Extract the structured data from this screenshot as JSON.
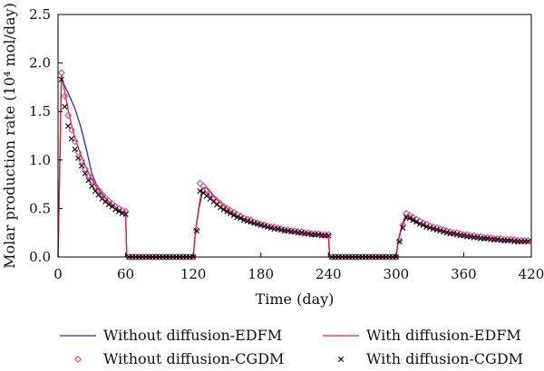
{
  "chart_data": {
    "type": "line",
    "xlabel": "Time (day)",
    "ylabel": "Molar production rate (10⁴ mol/day)",
    "xlim": [
      0,
      420
    ],
    "ylim": [
      0,
      2.5
    ],
    "x_ticks": [
      0,
      60,
      120,
      180,
      240,
      300,
      360,
      420
    ],
    "y_ticks": [
      0.0,
      0.5,
      1.0,
      1.5,
      2.0,
      2.5
    ],
    "x_tick_labels": [
      "0",
      "60",
      "120",
      "180",
      "240",
      "300",
      "360",
      "420"
    ],
    "y_tick_labels": [
      "0.0",
      "0.5",
      "1.0",
      "1.5",
      "2.0",
      "2.5"
    ],
    "grid": false,
    "legend_position": "bottom",
    "series": [
      {
        "name": "Without diffusion-EDFM",
        "style": "line",
        "color": "#1f2fd6",
        "x": [
          0,
          3,
          6,
          9,
          12,
          15,
          20,
          25,
          30,
          35,
          40,
          45,
          50,
          55,
          59,
          60,
          61,
          120,
          122,
          125,
          128,
          131,
          135,
          140,
          150,
          160,
          170,
          180,
          190,
          200,
          210,
          220,
          230,
          239,
          240,
          241,
          300,
          302,
          305,
          308,
          311,
          315,
          320,
          330,
          340,
          350,
          360,
          370,
          380,
          390,
          400,
          410,
          418,
          420
        ],
        "y": [
          0,
          1.84,
          1.76,
          1.69,
          1.61,
          1.53,
          1.35,
          1.12,
          0.86,
          0.72,
          0.64,
          0.57,
          0.52,
          0.48,
          0.46,
          0.45,
          0,
          0,
          0.26,
          0.5,
          0.66,
          0.67,
          0.62,
          0.55,
          0.46,
          0.4,
          0.35,
          0.32,
          0.29,
          0.27,
          0.25,
          0.24,
          0.23,
          0.22,
          0.22,
          0,
          0,
          0.17,
          0.3,
          0.39,
          0.4,
          0.37,
          0.34,
          0.3,
          0.27,
          0.24,
          0.22,
          0.21,
          0.19,
          0.18,
          0.17,
          0.16,
          0.16,
          0.16
        ]
      },
      {
        "name": "With diffusion-EDFM",
        "style": "line",
        "color": "#e8202a",
        "x": [
          0,
          3,
          6,
          9,
          12,
          15,
          20,
          25,
          30,
          35,
          40,
          45,
          50,
          55,
          59,
          60,
          61,
          120,
          122,
          125,
          128,
          131,
          135,
          140,
          150,
          160,
          170,
          180,
          190,
          200,
          210,
          220,
          230,
          239,
          240,
          241,
          300,
          302,
          305,
          308,
          311,
          315,
          320,
          330,
          340,
          350,
          360,
          370,
          380,
          390,
          400,
          410,
          418,
          420
        ],
        "y": [
          0,
          1.88,
          1.7,
          1.52,
          1.36,
          1.23,
          1.06,
          0.92,
          0.8,
          0.71,
          0.63,
          0.57,
          0.52,
          0.48,
          0.46,
          0.46,
          0,
          0,
          0.27,
          0.52,
          0.71,
          0.72,
          0.67,
          0.6,
          0.5,
          0.42,
          0.37,
          0.33,
          0.3,
          0.28,
          0.26,
          0.25,
          0.24,
          0.23,
          0.23,
          0,
          0,
          0.18,
          0.32,
          0.42,
          0.43,
          0.4,
          0.36,
          0.31,
          0.28,
          0.25,
          0.23,
          0.21,
          0.2,
          0.19,
          0.18,
          0.17,
          0.17,
          0.17
        ]
      },
      {
        "name": "Without diffusion-CGDM",
        "style": "diamond",
        "color": "#e0459a",
        "x": [
          3,
          6,
          9,
          12,
          15,
          18,
          21,
          24,
          27,
          30,
          33,
          36,
          39,
          42,
          45,
          48,
          51,
          54,
          57,
          60,
          63,
          66,
          69,
          72,
          75,
          78,
          81,
          84,
          87,
          90,
          93,
          96,
          99,
          102,
          105,
          108,
          111,
          114,
          117,
          120,
          123,
          126,
          129,
          132,
          135,
          138,
          141,
          144,
          147,
          150,
          153,
          156,
          159,
          162,
          165,
          168,
          171,
          174,
          177,
          180,
          183,
          186,
          189,
          192,
          195,
          198,
          201,
          204,
          207,
          210,
          213,
          216,
          219,
          222,
          225,
          228,
          231,
          234,
          237,
          240,
          243,
          246,
          249,
          252,
          255,
          258,
          261,
          264,
          267,
          270,
          273,
          276,
          279,
          282,
          285,
          288,
          291,
          294,
          297,
          300,
          303,
          306,
          309,
          312,
          315,
          318,
          321,
          324,
          327,
          330,
          333,
          336,
          339,
          342,
          345,
          348,
          351,
          354,
          357,
          360,
          363,
          366,
          369,
          372,
          375,
          378,
          381,
          384,
          387,
          390,
          393,
          396,
          399,
          402,
          405,
          408,
          411,
          414,
          417
        ],
        "y": [
          1.9,
          1.66,
          1.46,
          1.31,
          1.19,
          1.08,
          0.99,
          0.91,
          0.84,
          0.78,
          0.73,
          0.69,
          0.65,
          0.61,
          0.58,
          0.55,
          0.52,
          0.5,
          0.48,
          0.47,
          0,
          0,
          0,
          0,
          0,
          0,
          0,
          0,
          0,
          0,
          0,
          0,
          0,
          0,
          0,
          0,
          0,
          0,
          0,
          0,
          0.28,
          0.76,
          0.73,
          0.69,
          0.65,
          0.61,
          0.58,
          0.55,
          0.52,
          0.5,
          0.48,
          0.46,
          0.44,
          0.42,
          0.4,
          0.39,
          0.38,
          0.36,
          0.35,
          0.34,
          0.33,
          0.32,
          0.31,
          0.31,
          0.3,
          0.29,
          0.28,
          0.28,
          0.27,
          0.27,
          0.26,
          0.26,
          0.25,
          0.25,
          0.24,
          0.24,
          0.24,
          0.23,
          0.23,
          0.23,
          0,
          0,
          0,
          0,
          0,
          0,
          0,
          0,
          0,
          0,
          0,
          0,
          0,
          0,
          0,
          0,
          0,
          0,
          0,
          0,
          0.17,
          0.33,
          0.45,
          0.43,
          0.41,
          0.39,
          0.37,
          0.35,
          0.34,
          0.32,
          0.31,
          0.3,
          0.29,
          0.28,
          0.27,
          0.26,
          0.25,
          0.25,
          0.24,
          0.23,
          0.23,
          0.22,
          0.22,
          0.21,
          0.21,
          0.2,
          0.2,
          0.2,
          0.19,
          0.19,
          0.19,
          0.18,
          0.18,
          0.18,
          0.18,
          0.17,
          0.17,
          0.17,
          0.17
        ]
      },
      {
        "name": "With diffusion-CGDM",
        "style": "cross",
        "color": "#111111",
        "x": [
          3,
          6,
          9,
          12,
          15,
          18,
          21,
          24,
          27,
          30,
          33,
          36,
          39,
          42,
          45,
          48,
          51,
          54,
          57,
          60,
          63,
          66,
          69,
          72,
          75,
          78,
          81,
          84,
          87,
          90,
          93,
          96,
          99,
          102,
          105,
          108,
          111,
          114,
          117,
          120,
          123,
          126,
          129,
          132,
          135,
          138,
          141,
          144,
          147,
          150,
          153,
          156,
          159,
          162,
          165,
          168,
          171,
          174,
          177,
          180,
          183,
          186,
          189,
          192,
          195,
          198,
          201,
          204,
          207,
          210,
          213,
          216,
          219,
          222,
          225,
          228,
          231,
          234,
          237,
          240,
          243,
          246,
          249,
          252,
          255,
          258,
          261,
          264,
          267,
          270,
          273,
          276,
          279,
          282,
          285,
          288,
          291,
          294,
          297,
          300,
          303,
          306,
          309,
          312,
          315,
          318,
          321,
          324,
          327,
          330,
          333,
          336,
          339,
          342,
          345,
          348,
          351,
          354,
          357,
          360,
          363,
          366,
          369,
          372,
          375,
          378,
          381,
          384,
          387,
          390,
          393,
          396,
          399,
          402,
          405,
          408,
          411,
          414,
          417
        ],
        "y": [
          1.83,
          1.55,
          1.35,
          1.22,
          1.11,
          1.02,
          0.94,
          0.86,
          0.79,
          0.73,
          0.68,
          0.64,
          0.6,
          0.57,
          0.54,
          0.52,
          0.49,
          0.47,
          0.45,
          0.44,
          0,
          0,
          0,
          0,
          0,
          0,
          0,
          0,
          0,
          0,
          0,
          0,
          0,
          0,
          0,
          0,
          0,
          0,
          0,
          0,
          0.27,
          0.68,
          0.66,
          0.63,
          0.6,
          0.57,
          0.54,
          0.51,
          0.49,
          0.47,
          0.45,
          0.43,
          0.41,
          0.4,
          0.38,
          0.37,
          0.36,
          0.35,
          0.34,
          0.33,
          0.32,
          0.31,
          0.3,
          0.29,
          0.29,
          0.28,
          0.27,
          0.27,
          0.26,
          0.26,
          0.25,
          0.25,
          0.24,
          0.24,
          0.23,
          0.23,
          0.23,
          0.22,
          0.22,
          0.22,
          0,
          0,
          0,
          0,
          0,
          0,
          0,
          0,
          0,
          0,
          0,
          0,
          0,
          0,
          0,
          0,
          0,
          0,
          0,
          0,
          0.16,
          0.3,
          0.41,
          0.4,
          0.38,
          0.36,
          0.34,
          0.33,
          0.31,
          0.3,
          0.29,
          0.28,
          0.27,
          0.26,
          0.25,
          0.24,
          0.24,
          0.23,
          0.22,
          0.22,
          0.21,
          0.21,
          0.2,
          0.2,
          0.19,
          0.19,
          0.19,
          0.18,
          0.18,
          0.18,
          0.17,
          0.17,
          0.17,
          0.17,
          0.16,
          0.16,
          0.16,
          0.16,
          0.16
        ]
      }
    ]
  }
}
